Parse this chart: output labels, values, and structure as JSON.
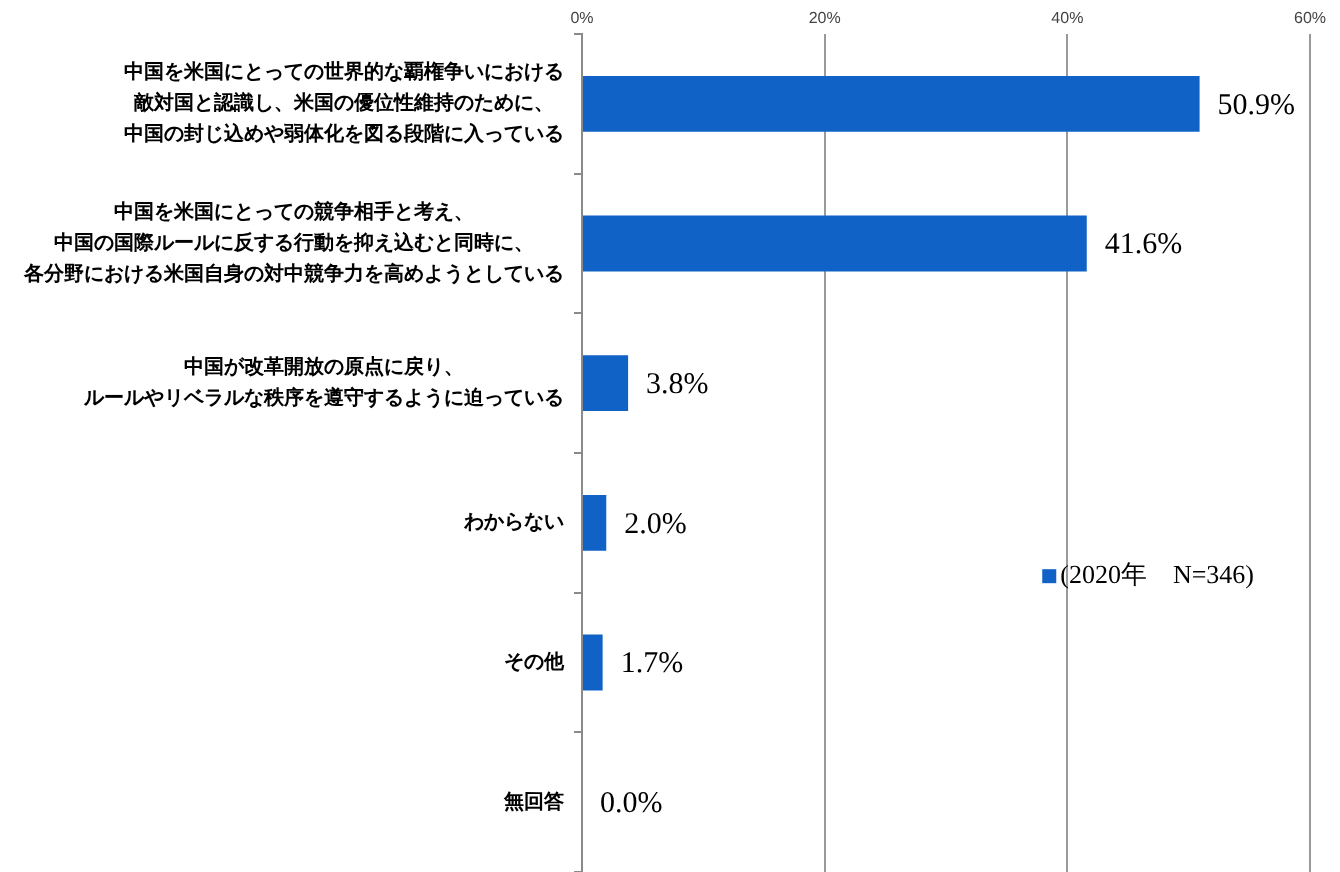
{
  "chart_data": {
    "type": "bar",
    "orientation": "horizontal",
    "categories": [
      "中国を米国にとっての世界的な覇権争いにおける敵対国と認識し、米国の優位性維持のために、中国の封じ込めや弱体化を図る段階に入っている",
      "中国を米国にとっての競争相手と考え、中国の国際ルールに反する行動を抑え込むと同時に、各分野における米国自身の対中競争力を高めようとしている",
      "中国が改革開放の原点に戻り、ルールやリベラルな秩序を遵守するように迫っている",
      "わからない",
      "その他",
      "無回答"
    ],
    "series": [
      {
        "name": "(2020年　N=346)",
        "color": "#1062c6",
        "values": [
          50.9,
          41.6,
          3.8,
          2.0,
          1.7,
          0.0
        ],
        "value_labels": [
          "50.9%",
          "41.6%",
          "3.8%",
          "2.0%",
          "1.7%",
          "0.0%"
        ]
      }
    ],
    "xlim": [
      0,
      60
    ],
    "xticks": [
      {
        "value": 0,
        "label": "0%"
      },
      {
        "value": 20,
        "label": "20%"
      },
      {
        "value": 40,
        "label": "40%"
      },
      {
        "value": 60,
        "label": "60%"
      }
    ],
    "grid": "x",
    "legend": "right"
  }
}
